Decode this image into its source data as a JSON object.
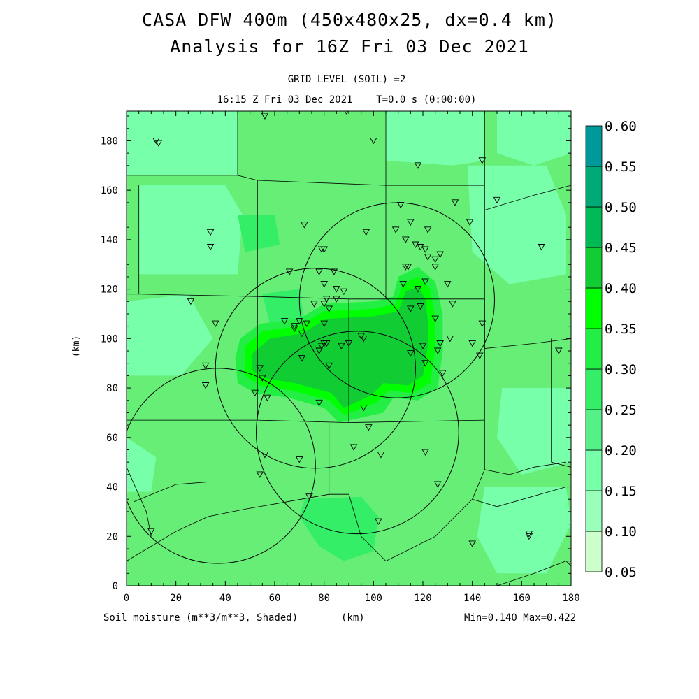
{
  "header": {
    "title_line1": "CASA DFW 400m (450x480x25, dx=0.4 km)",
    "title_line2": "Analysis for 16Z Fri 03 Dec 2021",
    "subtitle_line1": "GRID LEVEL (SOIL) =2",
    "subtitle_line2": "16:15 Z Fri 03 Dec 2021    T=0.0 s (0:00:00)"
  },
  "footer": {
    "field_label": "Soil moisture (m**3/m**3, Shaded)",
    "unit_label": "(km)",
    "minmax": "Min=0.140 Max=0.422"
  },
  "colors": {
    "background_field": "#66ee77",
    "wet_core": "#11cc33"
  },
  "chart_data": {
    "type": "heatmap",
    "xlabel": "",
    "ylabel": "(km)",
    "xlim": [
      0,
      180
    ],
    "ylim": [
      0,
      192
    ],
    "x_ticks": [
      "0",
      "20",
      "40",
      "60",
      "80",
      "100",
      "120",
      "140",
      "160",
      "180"
    ],
    "y_ticks": [
      "0",
      "20",
      "40",
      "60",
      "80",
      "100",
      "120",
      "140",
      "160",
      "180"
    ],
    "value_min": 0.14,
    "value_max": 0.422,
    "colorbar": {
      "levels": [
        "0.05",
        "0.10",
        "0.15",
        "0.20",
        "0.25",
        "0.30",
        "0.35",
        "0.40",
        "0.45",
        "0.50",
        "0.55",
        "0.60"
      ],
      "colors": [
        "#ccffcc",
        "#99ffbb",
        "#77ffaa",
        "#55f088",
        "#33ee66",
        "#22ee44",
        "#00ff00",
        "#11cc33",
        "#00bb55",
        "#00aa77",
        "#009999",
        "#0066ff"
      ]
    },
    "field_patches": [
      {
        "level": 2,
        "poly": [
          [
            0,
            192
          ],
          [
            45,
            192
          ],
          [
            45,
            166
          ],
          [
            0,
            166
          ]
        ]
      },
      {
        "level": 2,
        "poly": [
          [
            5,
            162
          ],
          [
            40,
            162
          ],
          [
            47,
            150
          ],
          [
            45,
            126
          ],
          [
            5,
            126
          ]
        ]
      },
      {
        "level": 2,
        "poly": [
          [
            105,
            192
          ],
          [
            145,
            192
          ],
          [
            145,
            172
          ],
          [
            132,
            170
          ],
          [
            105,
            172
          ]
        ]
      },
      {
        "level": 2,
        "poly": [
          [
            150,
            192
          ],
          [
            180,
            192
          ],
          [
            180,
            175
          ],
          [
            165,
            170
          ],
          [
            150,
            175
          ]
        ]
      },
      {
        "level": 2,
        "poly": [
          [
            138,
            170
          ],
          [
            170,
            170
          ],
          [
            178,
            150
          ],
          [
            178,
            126
          ],
          [
            155,
            122
          ],
          [
            140,
            135
          ]
        ]
      },
      {
        "level": 2,
        "poly": [
          [
            152,
            80
          ],
          [
            180,
            80
          ],
          [
            180,
            50
          ],
          [
            160,
            45
          ],
          [
            150,
            60
          ]
        ]
      },
      {
        "level": 2,
        "poly": [
          [
            0,
            115
          ],
          [
            25,
            118
          ],
          [
            35,
            100
          ],
          [
            22,
            85
          ],
          [
            0,
            85
          ]
        ]
      },
      {
        "level": 2,
        "poly": [
          [
            0,
            60
          ],
          [
            12,
            52
          ],
          [
            10,
            38
          ],
          [
            0,
            38
          ]
        ]
      },
      {
        "level": 2,
        "poly": [
          [
            145,
            40
          ],
          [
            178,
            40
          ],
          [
            180,
            25
          ],
          [
            170,
            5
          ],
          [
            150,
            5
          ],
          [
            142,
            20
          ]
        ]
      },
      {
        "level": 4,
        "poly": [
          [
            45,
            150
          ],
          [
            60,
            150
          ],
          [
            62,
            138
          ],
          [
            48,
            135
          ]
        ]
      },
      {
        "level": 4,
        "poly": [
          [
            55,
            118
          ],
          [
            70,
            120
          ],
          [
            72,
            108
          ],
          [
            58,
            106
          ]
        ]
      },
      {
        "level": 4,
        "poly": [
          [
            72,
            35
          ],
          [
            95,
            36
          ],
          [
            102,
            28
          ],
          [
            100,
            14
          ],
          [
            88,
            10
          ],
          [
            78,
            16
          ],
          [
            70,
            28
          ]
        ]
      },
      {
        "level": 5,
        "poly": [
          [
            46,
            100
          ],
          [
            54,
            106
          ],
          [
            70,
            108
          ],
          [
            80,
            114
          ],
          [
            100,
            115
          ],
          [
            108,
            117
          ],
          [
            110,
            125
          ],
          [
            118,
            129
          ],
          [
            125,
            123
          ],
          [
            128,
            110
          ],
          [
            128,
            95
          ],
          [
            126,
            80
          ],
          [
            118,
            75
          ],
          [
            108,
            76
          ],
          [
            104,
            70
          ],
          [
            86,
            66
          ],
          [
            80,
            72
          ],
          [
            66,
            76
          ],
          [
            52,
            78
          ],
          [
            45,
            82
          ],
          [
            44,
            92
          ]
        ]
      },
      {
        "level": 6,
        "poly": [
          [
            48,
            97
          ],
          [
            55,
            103
          ],
          [
            70,
            105
          ],
          [
            80,
            111
          ],
          [
            100,
            112
          ],
          [
            109,
            114
          ],
          [
            112,
            122
          ],
          [
            118,
            125
          ],
          [
            123,
            120
          ],
          [
            125,
            108
          ],
          [
            125,
            96
          ],
          [
            123,
            82
          ],
          [
            116,
            78
          ],
          [
            106,
            79
          ],
          [
            101,
            74
          ],
          [
            88,
            69
          ],
          [
            82,
            75
          ],
          [
            67,
            79
          ],
          [
            54,
            81
          ],
          [
            48,
            85
          ]
        ]
      },
      {
        "level": 7,
        "poly": [
          [
            51,
            94
          ],
          [
            58,
            100
          ],
          [
            71,
            102
          ],
          [
            81,
            108
          ],
          [
            100,
            109
          ],
          [
            110,
            111
          ],
          [
            113,
            119
          ],
          [
            118,
            121
          ],
          [
            121,
            116
          ],
          [
            122,
            107
          ],
          [
            122,
            97
          ],
          [
            120,
            85
          ],
          [
            114,
            81
          ],
          [
            104,
            82
          ],
          [
            99,
            77
          ],
          [
            88,
            72
          ],
          [
            83,
            78
          ],
          [
            68,
            82
          ],
          [
            56,
            84
          ],
          [
            51,
            87
          ]
        ]
      }
    ],
    "county_lines": [
      [
        [
          0,
          166
        ],
        [
          45,
          166
        ],
        [
          45,
          192
        ]
      ],
      [
        [
          45,
          166
        ],
        [
          53,
          164
        ],
        [
          105,
          162
        ],
        [
          105,
          192
        ]
      ],
      [
        [
          105,
          162
        ],
        [
          145,
          162
        ],
        [
          145,
          192
        ]
      ],
      [
        [
          145,
          162
        ],
        [
          145,
          152
        ],
        [
          165,
          158
        ],
        [
          180,
          162
        ]
      ],
      [
        [
          5,
          162
        ],
        [
          5,
          118
        ],
        [
          53,
          117
        ]
      ],
      [
        [
          53,
          164
        ],
        [
          53,
          117
        ],
        [
          90,
          116
        ]
      ],
      [
        [
          105,
          162
        ],
        [
          105,
          116
        ]
      ],
      [
        [
          145,
          152
        ],
        [
          145,
          116
        ]
      ],
      [
        [
          5,
          118
        ],
        [
          0,
          118
        ]
      ],
      [
        [
          53,
          117
        ],
        [
          53,
          67
        ],
        [
          90,
          66
        ]
      ],
      [
        [
          90,
          116
        ],
        [
          90,
          66
        ]
      ],
      [
        [
          90,
          116
        ],
        [
          145,
          116
        ]
      ],
      [
        [
          145,
          116
        ],
        [
          145,
          96
        ],
        [
          165,
          98
        ],
        [
          180,
          100
        ]
      ],
      [
        [
          145,
          116
        ],
        [
          145,
          67
        ]
      ],
      [
        [
          90,
          66
        ],
        [
          145,
          67
        ]
      ],
      [
        [
          0,
          67
        ],
        [
          33,
          67
        ],
        [
          53,
          67
        ]
      ],
      [
        [
          33,
          67
        ],
        [
          33,
          42
        ],
        [
          20,
          41
        ],
        [
          3,
          34
        ]
      ],
      [
        [
          0,
          48
        ],
        [
          8,
          30
        ],
        [
          10,
          20
        ]
      ],
      [
        [
          33,
          28
        ],
        [
          20,
          22
        ],
        [
          0,
          10
        ]
      ],
      [
        [
          33,
          67
        ],
        [
          33,
          28
        ],
        [
          48,
          31
        ],
        [
          82,
          37
        ]
      ],
      [
        [
          82,
          37
        ],
        [
          90,
          37
        ],
        [
          95,
          20
        ],
        [
          105,
          10
        ],
        [
          125,
          20
        ],
        [
          140,
          35
        ],
        [
          145,
          47
        ],
        [
          155,
          45
        ],
        [
          165,
          48
        ],
        [
          178,
          50
        ]
      ],
      [
        [
          82,
          66
        ],
        [
          82,
          37
        ]
      ],
      [
        [
          145,
          67
        ],
        [
          145,
          47
        ]
      ],
      [
        [
          172,
          100
        ],
        [
          172,
          50
        ],
        [
          180,
          48
        ]
      ],
      [
        [
          150,
          0
        ],
        [
          165,
          5
        ],
        [
          178,
          10
        ],
        [
          180,
          8
        ]
      ],
      [
        [
          140,
          35
        ],
        [
          150,
          32
        ],
        [
          178,
          40
        ]
      ]
    ],
    "radar_rings": [
      {
        "cx": 109.5,
        "cy": 115.5,
        "r": 39.5
      },
      {
        "cx": 76.5,
        "cy": 88,
        "r": 40.5
      },
      {
        "cx": 93.5,
        "cy": 62,
        "r": 41
      },
      {
        "cx": 37,
        "cy": 48.5,
        "r": 39.5
      }
    ],
    "stations": [
      [
        12,
        180
      ],
      [
        13,
        179
      ],
      [
        56,
        190
      ],
      [
        89,
        192
      ],
      [
        100,
        180
      ],
      [
        118,
        170
      ],
      [
        144,
        172
      ],
      [
        150,
        156
      ],
      [
        133,
        155
      ],
      [
        111,
        154
      ],
      [
        109,
        144
      ],
      [
        115,
        147
      ],
      [
        122,
        144
      ],
      [
        139,
        147
      ],
      [
        97,
        143
      ],
      [
        72,
        146
      ],
      [
        34,
        143
      ],
      [
        34,
        137
      ],
      [
        168,
        137
      ],
      [
        113,
        140
      ],
      [
        117,
        138
      ],
      [
        119,
        137
      ],
      [
        121,
        136
      ],
      [
        122,
        133
      ],
      [
        125,
        132
      ],
      [
        127,
        134
      ],
      [
        113,
        129
      ],
      [
        114,
        129
      ],
      [
        125,
        129
      ],
      [
        79,
        136
      ],
      [
        80,
        136
      ],
      [
        66,
        127
      ],
      [
        78,
        127
      ],
      [
        84,
        127
      ],
      [
        112,
        122
      ],
      [
        118,
        120
      ],
      [
        121,
        123
      ],
      [
        130,
        122
      ],
      [
        80,
        122
      ],
      [
        85,
        120
      ],
      [
        81,
        116
      ],
      [
        88,
        119
      ],
      [
        26,
        115
      ],
      [
        80,
        114
      ],
      [
        85,
        116
      ],
      [
        76,
        114
      ],
      [
        82,
        112
      ],
      [
        115,
        112
      ],
      [
        119,
        113
      ],
      [
        132,
        114
      ],
      [
        64,
        107
      ],
      [
        70,
        107
      ],
      [
        73,
        106
      ],
      [
        36,
        106
      ],
      [
        68,
        104
      ],
      [
        125,
        108
      ],
      [
        144,
        106
      ],
      [
        68,
        105
      ],
      [
        71,
        102
      ],
      [
        80,
        106
      ],
      [
        95,
        101
      ],
      [
        96,
        100
      ],
      [
        90,
        98
      ],
      [
        80,
        98
      ],
      [
        79,
        97
      ],
      [
        81,
        98
      ],
      [
        87,
        97
      ],
      [
        120,
        97
      ],
      [
        126,
        95
      ],
      [
        131,
        100
      ],
      [
        127,
        98
      ],
      [
        140,
        98
      ],
      [
        143,
        93
      ],
      [
        175,
        95
      ],
      [
        71,
        92
      ],
      [
        78,
        95
      ],
      [
        115,
        94
      ],
      [
        121,
        90
      ],
      [
        32,
        89
      ],
      [
        54,
        88
      ],
      [
        82,
        89
      ],
      [
        128,
        86
      ],
      [
        32,
        81
      ],
      [
        55,
        84
      ],
      [
        52,
        78
      ],
      [
        57,
        76
      ],
      [
        78,
        74
      ],
      [
        96,
        72
      ],
      [
        98,
        64
      ],
      [
        92,
        56
      ],
      [
        56,
        53
      ],
      [
        70,
        51
      ],
      [
        103,
        53
      ],
      [
        121,
        54
      ],
      [
        54,
        45
      ],
      [
        126,
        41
      ],
      [
        74,
        36
      ],
      [
        10,
        22
      ],
      [
        102,
        26
      ],
      [
        140,
        17
      ],
      [
        163,
        21
      ],
      [
        163,
        20
      ]
    ]
  }
}
